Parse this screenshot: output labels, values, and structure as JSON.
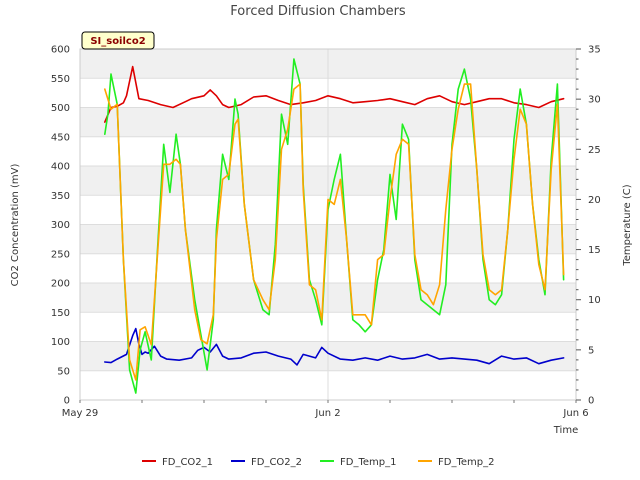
{
  "chart_data": {
    "type": "line",
    "title": "Forced Diffusion Chambers",
    "site_badge": "SI_soilco2",
    "xlabel": "Time",
    "ylabel": "CO2 Concentration (mV)",
    "y2label": "Temperature (C)",
    "xlim": [
      0,
      8
    ],
    "ylim": [
      0,
      600
    ],
    "y2lim": [
      0,
      35
    ],
    "x_ticks": [
      {
        "value": 0,
        "label": "May 29"
      },
      {
        "value": 4,
        "label": "Jun 2"
      },
      {
        "value": 8,
        "label": "Jun 6"
      }
    ],
    "y_ticks": [
      0,
      50,
      100,
      150,
      200,
      250,
      300,
      350,
      400,
      450,
      500,
      550,
      600
    ],
    "y2_ticks": [
      0,
      5,
      10,
      15,
      20,
      25,
      30,
      35
    ],
    "series": [
      {
        "name": "FD_CO2_1",
        "axis": "left",
        "color": "#dd0000",
        "x": [
          0.4,
          0.5,
          0.6,
          0.7,
          0.75,
          0.85,
          0.95,
          1.1,
          1.3,
          1.5,
          1.7,
          1.8,
          2.0,
          2.1,
          2.2,
          2.3,
          2.4,
          2.6,
          2.8,
          3.0,
          3.2,
          3.4,
          3.6,
          3.8,
          4.0,
          4.2,
          4.4,
          4.6,
          4.8,
          5.0,
          5.2,
          5.4,
          5.6,
          5.8,
          6.0,
          6.2,
          6.4,
          6.6,
          6.8,
          7.0,
          7.2,
          7.4,
          7.6,
          7.8
        ],
        "values": [
          475,
          500,
          502,
          508,
          520,
          570,
          515,
          512,
          505,
          500,
          510,
          515,
          520,
          530,
          520,
          505,
          500,
          505,
          518,
          520,
          512,
          505,
          508,
          512,
          520,
          515,
          508,
          510,
          512,
          515,
          510,
          505,
          515,
          520,
          510,
          505,
          510,
          515,
          515,
          508,
          505,
          500,
          510,
          515
        ]
      },
      {
        "name": "FD_CO2_2",
        "axis": "left",
        "color": "#0000cc",
        "x": [
          0.4,
          0.5,
          0.6,
          0.75,
          0.85,
          0.9,
          0.95,
          1.0,
          1.05,
          1.1,
          1.2,
          1.3,
          1.4,
          1.6,
          1.8,
          1.9,
          2.0,
          2.1,
          2.2,
          2.3,
          2.4,
          2.6,
          2.8,
          3.0,
          3.2,
          3.4,
          3.5,
          3.6,
          3.8,
          3.9,
          4.0,
          4.2,
          4.4,
          4.6,
          4.8,
          5.0,
          5.2,
          5.4,
          5.6,
          5.8,
          6.0,
          6.2,
          6.4,
          6.6,
          6.8,
          7.0,
          7.2,
          7.4,
          7.6,
          7.8
        ],
        "values": [
          65,
          64,
          70,
          78,
          110,
          122,
          95,
          78,
          82,
          80,
          92,
          75,
          70,
          68,
          72,
          85,
          90,
          82,
          95,
          75,
          70,
          72,
          80,
          82,
          75,
          70,
          60,
          78,
          72,
          90,
          80,
          70,
          68,
          72,
          68,
          75,
          70,
          72,
          78,
          70,
          72,
          70,
          68,
          62,
          75,
          70,
          72,
          62,
          68,
          72
        ]
      },
      {
        "name": "FD_Temp_1",
        "axis": "right",
        "color": "#22ee22",
        "x": [
          0.4,
          0.45,
          0.5,
          0.6,
          0.7,
          0.8,
          0.9,
          0.97,
          1.05,
          1.15,
          1.25,
          1.35,
          1.45,
          1.55,
          1.62,
          1.7,
          1.85,
          1.95,
          2.05,
          2.15,
          2.2,
          2.3,
          2.4,
          2.5,
          2.55,
          2.65,
          2.8,
          2.95,
          3.05,
          3.15,
          3.25,
          3.35,
          3.45,
          3.55,
          3.6,
          3.7,
          3.8,
          3.9,
          4.0,
          4.1,
          4.2,
          4.3,
          4.4,
          4.5,
          4.6,
          4.7,
          4.8,
          4.9,
          5.0,
          5.1,
          5.2,
          5.3,
          5.4,
          5.5,
          5.6,
          5.7,
          5.8,
          5.9,
          6.0,
          6.1,
          6.2,
          6.3,
          6.4,
          6.5,
          6.6,
          6.7,
          6.8,
          6.9,
          7.0,
          7.1,
          7.2,
          7.3,
          7.4,
          7.5,
          7.6,
          7.7,
          7.8
        ],
        "values": [
          26.5,
          28.5,
          32.5,
          29.5,
          14,
          3,
          0.7,
          5,
          6.8,
          4,
          15,
          25.5,
          20.7,
          26.5,
          23.5,
          17,
          10,
          6.5,
          3,
          8,
          17,
          24.5,
          22,
          30,
          28.5,
          19.5,
          12,
          9,
          8.5,
          15.5,
          28.5,
          25.5,
          34,
          31.5,
          21.5,
          12,
          10,
          7.5,
          19,
          22,
          24.5,
          16,
          8,
          7.5,
          6.8,
          7.5,
          12,
          15,
          22.5,
          18,
          27.5,
          26,
          14,
          10,
          9.5,
          9,
          8.5,
          11.5,
          25.5,
          31,
          33,
          30,
          23,
          14,
          10,
          9.5,
          10.5,
          17,
          26,
          31,
          27.5,
          19.5,
          14,
          10.5,
          24,
          31.5,
          12
        ]
      },
      {
        "name": "FD_Temp_2",
        "axis": "right",
        "color": "#ffa500",
        "x": [
          0.4,
          0.45,
          0.5,
          0.6,
          0.7,
          0.8,
          0.9,
          0.97,
          1.05,
          1.15,
          1.25,
          1.35,
          1.45,
          1.55,
          1.62,
          1.7,
          1.85,
          1.95,
          2.05,
          2.15,
          2.2,
          2.3,
          2.4,
          2.5,
          2.55,
          2.65,
          2.8,
          2.95,
          3.05,
          3.15,
          3.25,
          3.35,
          3.45,
          3.55,
          3.6,
          3.7,
          3.8,
          3.9,
          4.0,
          4.1,
          4.2,
          4.3,
          4.4,
          4.5,
          4.6,
          4.7,
          4.8,
          4.9,
          5.0,
          5.1,
          5.2,
          5.3,
          5.4,
          5.5,
          5.6,
          5.7,
          5.8,
          5.9,
          6.0,
          6.1,
          6.2,
          6.3,
          6.4,
          6.5,
          6.6,
          6.7,
          6.8,
          6.9,
          7.0,
          7.1,
          7.2,
          7.3,
          7.4,
          7.5,
          7.6,
          7.7,
          7.8
        ],
        "values": [
          31,
          30,
          29,
          29.5,
          14,
          4,
          2,
          7,
          7.3,
          5.5,
          14.5,
          23.5,
          23.5,
          24,
          23.5,
          17,
          9,
          6,
          5.6,
          8.5,
          16,
          22,
          22.5,
          27.5,
          28,
          19.5,
          12,
          10,
          9,
          14,
          25,
          27,
          31,
          31.5,
          21,
          11.5,
          11,
          8,
          20,
          19.5,
          22,
          16,
          8.5,
          8.5,
          8.5,
          7.5,
          14,
          14.5,
          20,
          24.5,
          26,
          25.5,
          14.5,
          11,
          10.5,
          9.5,
          11.5,
          19,
          25,
          29,
          31.5,
          31.5,
          23,
          14.5,
          11,
          10.5,
          11,
          17,
          24,
          29,
          27.5,
          19.5,
          13.5,
          11,
          23,
          29.5,
          12.5
        ]
      }
    ],
    "legend": {
      "position": "bottom"
    }
  }
}
